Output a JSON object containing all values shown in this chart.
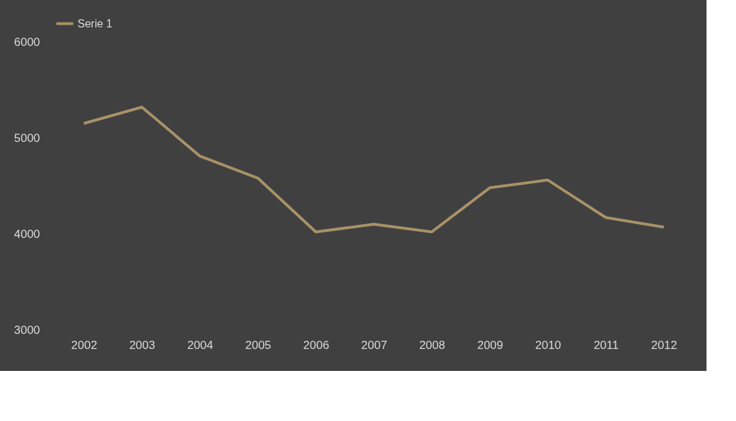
{
  "chart_data": {
    "type": "line",
    "categories": [
      "2002",
      "2003",
      "2004",
      "2005",
      "2006",
      "2007",
      "2008",
      "2009",
      "2010",
      "2011",
      "2012"
    ],
    "series": [
      {
        "name": "Serie 1",
        "color": "#a89268",
        "values": [
          5150,
          5320,
          4810,
          4580,
          4020,
          4100,
          4020,
          4480,
          4560,
          4170,
          4070
        ]
      }
    ],
    "ylim": [
      3000,
      6000
    ],
    "yticks": [
      3000,
      4000,
      5000,
      6000
    ],
    "grid": false,
    "legend": "top",
    "marker": "none",
    "line_style": "solid"
  }
}
